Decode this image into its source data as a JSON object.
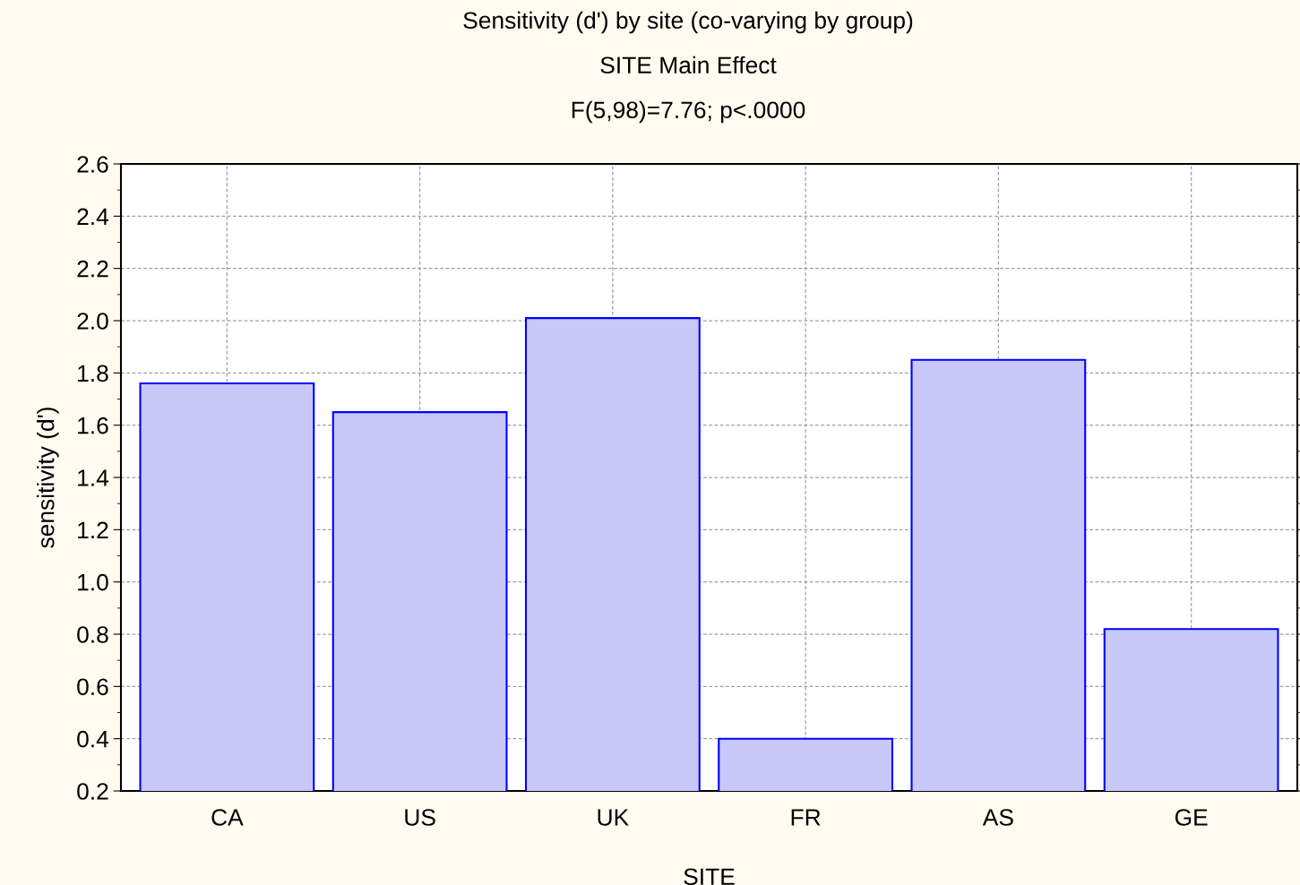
{
  "chart_data": {
    "type": "bar",
    "title": "Sensitivity (d') by site (co-varying by group)",
    "subtitle": "SITE Main Effect",
    "annotations": [
      "F(5,98)=7.76; p<.0000"
    ],
    "xlabel": "SITE",
    "ylabel": "sensitivity (d')",
    "categories": [
      "CA",
      "US",
      "UK",
      "FR",
      "AS",
      "GE"
    ],
    "values": [
      1.76,
      1.65,
      2.01,
      0.4,
      1.85,
      0.82
    ],
    "color": "#c8c8f8",
    "ylim": [
      0.2,
      2.6
    ],
    "yticks": [
      {
        "value": 0.2,
        "label": "0.2"
      },
      {
        "value": 0.4,
        "label": "0.4"
      },
      {
        "value": 0.6,
        "label": "0.6"
      },
      {
        "value": 0.8,
        "label": "0.8"
      },
      {
        "value": 1.0,
        "label": "1.0"
      },
      {
        "value": 1.2,
        "label": "1.2"
      },
      {
        "value": 1.4,
        "label": "1.4"
      },
      {
        "value": 1.6,
        "label": "1.6"
      },
      {
        "value": 1.8,
        "label": "1.8"
      },
      {
        "value": 2.0,
        "label": "2.0"
      },
      {
        "value": 2.2,
        "label": "2.2"
      },
      {
        "value": 2.4,
        "label": "2.4"
      },
      {
        "value": 2.6,
        "label": "2.6"
      }
    ],
    "grid": true
  }
}
